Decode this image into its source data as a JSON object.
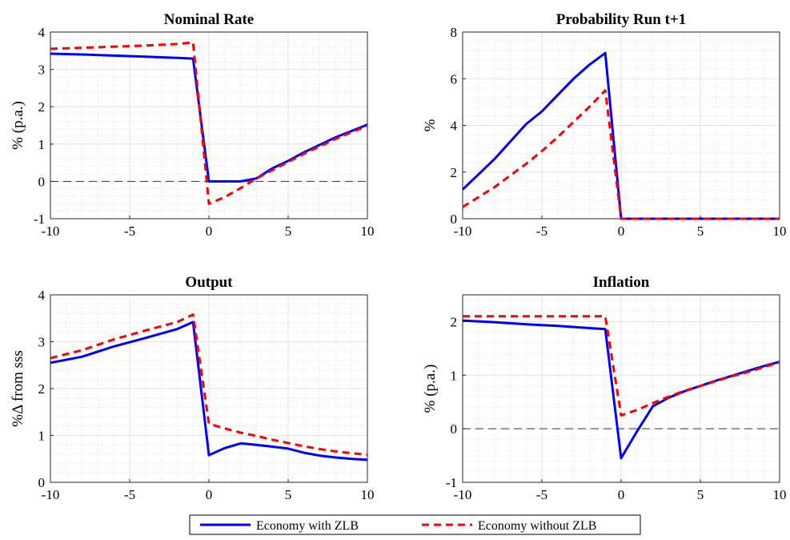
{
  "figure": {
    "legend": {
      "placement": "bottom-center",
      "entries": [
        {
          "label": "Economy with ZLB",
          "color": "#0000ff",
          "style": "solid"
        },
        {
          "label": "Economy without ZLB",
          "color": "#ff0000",
          "style": "dashed"
        }
      ]
    }
  },
  "chart_data": [
    {
      "id": "nominal-rate",
      "type": "line",
      "title": "Nominal Rate",
      "xlabel": "",
      "ylabel": "% (p.a.)",
      "xlim": [
        -10,
        10
      ],
      "ylim": [
        -1,
        4
      ],
      "xticks": [
        -10,
        -5,
        0,
        5,
        10
      ],
      "yticks": [
        -1,
        0,
        1,
        2,
        3,
        4
      ],
      "grid": true,
      "minor_grid": true,
      "zero_line": true,
      "series": [
        {
          "name": "Economy with ZLB",
          "color": "#0000ff",
          "style": "solid",
          "x": [
            -10,
            -8,
            -6,
            -4,
            -2,
            -1,
            0,
            1,
            2,
            3,
            4,
            5,
            6,
            7,
            8,
            9,
            10
          ],
          "y": [
            3.42,
            3.4,
            3.37,
            3.34,
            3.31,
            3.29,
            0.0,
            0.0,
            0.0,
            0.08,
            0.35,
            0.55,
            0.78,
            0.98,
            1.18,
            1.35,
            1.52
          ]
        },
        {
          "name": "Economy without ZLB",
          "color": "#ff0000",
          "style": "dashed",
          "x": [
            -10,
            -8,
            -6,
            -4,
            -2,
            -1,
            0,
            1,
            2,
            3,
            4,
            5,
            6,
            7,
            8,
            9,
            10
          ],
          "y": [
            3.55,
            3.58,
            3.61,
            3.64,
            3.68,
            3.72,
            -0.6,
            -0.42,
            -0.18,
            0.08,
            0.3,
            0.52,
            0.74,
            0.94,
            1.14,
            1.32,
            1.48
          ]
        }
      ]
    },
    {
      "id": "probability-run",
      "type": "line",
      "title": "Probability Run t+1",
      "xlabel": "",
      "ylabel": "%",
      "xlim": [
        -10,
        10
      ],
      "ylim": [
        0,
        8
      ],
      "xticks": [
        -10,
        -5,
        0,
        5,
        10
      ],
      "yticks": [
        0,
        2,
        4,
        6,
        8
      ],
      "grid": true,
      "minor_grid": true,
      "zero_line": false,
      "series": [
        {
          "name": "Economy with ZLB",
          "color": "#0000ff",
          "style": "solid",
          "x": [
            -10,
            -8,
            -6,
            -5,
            -4,
            -3,
            -2,
            -1,
            0,
            1,
            5,
            10
          ],
          "y": [
            1.25,
            2.55,
            4.05,
            4.6,
            5.3,
            6.0,
            6.6,
            7.1,
            0.0,
            0.0,
            0.0,
            0.0
          ]
        },
        {
          "name": "Economy without ZLB",
          "color": "#ff0000",
          "style": "dashed",
          "x": [
            -10,
            -8,
            -6,
            -5,
            -4,
            -3,
            -2,
            -1,
            0,
            1,
            5,
            10
          ],
          "y": [
            0.5,
            1.35,
            2.35,
            2.9,
            3.5,
            4.15,
            4.8,
            5.5,
            0.0,
            0.0,
            0.0,
            0.0
          ]
        }
      ]
    },
    {
      "id": "output",
      "type": "line",
      "title": "Output",
      "xlabel": "",
      "ylabel": "%Δ from sss",
      "xlim": [
        -10,
        10
      ],
      "ylim": [
        0,
        4
      ],
      "xticks": [
        -10,
        -5,
        0,
        5,
        10
      ],
      "yticks": [
        0,
        1,
        2,
        3,
        4
      ],
      "grid": true,
      "minor_grid": true,
      "zero_line": false,
      "series": [
        {
          "name": "Economy with ZLB",
          "color": "#0000ff",
          "style": "solid",
          "x": [
            -10,
            -8,
            -6,
            -4,
            -2,
            -1,
            0,
            1,
            2,
            3,
            4,
            5,
            6,
            7,
            8,
            9,
            10
          ],
          "y": [
            2.55,
            2.68,
            2.9,
            3.08,
            3.27,
            3.42,
            0.58,
            0.73,
            0.83,
            0.8,
            0.76,
            0.72,
            0.63,
            0.57,
            0.53,
            0.5,
            0.48
          ]
        },
        {
          "name": "Economy without ZLB",
          "color": "#ff0000",
          "style": "dashed",
          "x": [
            -10,
            -8,
            -6,
            -4,
            -2,
            -1,
            0,
            1,
            2,
            3,
            4,
            5,
            6,
            7,
            8,
            9,
            10
          ],
          "y": [
            2.65,
            2.82,
            3.05,
            3.24,
            3.42,
            3.58,
            1.25,
            1.15,
            1.06,
            0.99,
            0.91,
            0.84,
            0.77,
            0.71,
            0.66,
            0.62,
            0.59
          ]
        }
      ]
    },
    {
      "id": "inflation",
      "type": "line",
      "title": "Inflation",
      "xlabel": "",
      "ylabel": "% (p.a.)",
      "xlim": [
        -10,
        10
      ],
      "ylim": [
        -1,
        2.5
      ],
      "xticks": [
        -10,
        -5,
        0,
        5,
        10
      ],
      "yticks": [
        -1,
        0,
        1,
        2
      ],
      "grid": true,
      "minor_grid": true,
      "zero_line": true,
      "series": [
        {
          "name": "Economy with ZLB",
          "color": "#0000ff",
          "style": "solid",
          "x": [
            -10,
            -8,
            -6,
            -4,
            -2,
            -1,
            0,
            1,
            2,
            3,
            4,
            5,
            6,
            7,
            8,
            9,
            10
          ],
          "y": [
            2.02,
            1.99,
            1.95,
            1.92,
            1.88,
            1.86,
            -0.55,
            -0.05,
            0.42,
            0.58,
            0.7,
            0.8,
            0.9,
            0.99,
            1.08,
            1.17,
            1.25
          ]
        },
        {
          "name": "Economy without ZLB",
          "color": "#ff0000",
          "style": "dashed",
          "x": [
            -10,
            -8,
            -6,
            -4,
            -2,
            -1,
            0,
            1,
            2,
            3,
            4,
            5,
            6,
            7,
            8,
            9,
            10
          ],
          "y": [
            2.1,
            2.1,
            2.1,
            2.1,
            2.1,
            2.1,
            0.25,
            0.35,
            0.48,
            0.6,
            0.71,
            0.8,
            0.89,
            0.98,
            1.06,
            1.15,
            1.24
          ]
        }
      ]
    }
  ]
}
